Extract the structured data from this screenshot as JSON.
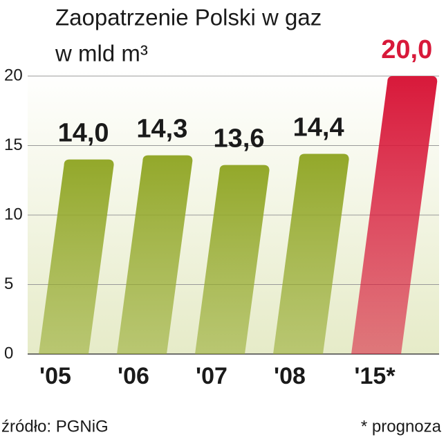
{
  "chart_data": {
    "type": "bar",
    "title": "Zaopatrzenie Polski w gaz",
    "subtitle": "w mld m³",
    "categories": [
      "'05",
      "'06",
      "'07",
      "'08",
      "'15*"
    ],
    "values": [
      14.0,
      14.3,
      13.6,
      14.4,
      20.0
    ],
    "value_labels": [
      "14,0",
      "14,3",
      "13,6",
      "14,4",
      "20,0"
    ],
    "colors": [
      "#93a82a",
      "#93a82a",
      "#93a82a",
      "#93a82a",
      "#d8193a"
    ],
    "ylim": [
      0,
      20
    ],
    "yticks": [
      0,
      5,
      10,
      15,
      20
    ],
    "grid": true,
    "source": "źródło: PGNiG",
    "note": "* prognoza"
  }
}
